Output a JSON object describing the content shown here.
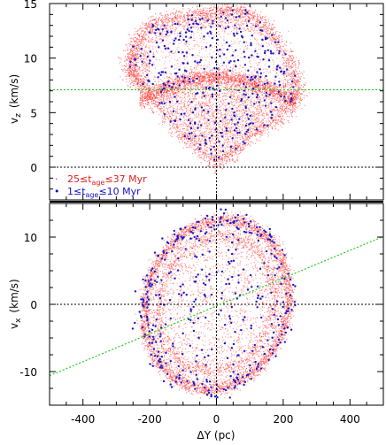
{
  "colors": {
    "red_cloud": "#ff3030",
    "blue_points": "#1a1acc",
    "green_line": "#22cc22",
    "reference_lines": "#000000",
    "legend_red_text": "#e02020",
    "legend_blue_text": "#1010d0"
  },
  "chart_data": [
    {
      "type": "scatter",
      "panel": "top",
      "xlabel": "",
      "ylabel": "v_z (km/s)",
      "ylabel_parts": {
        "main": "v",
        "sub": "z",
        "unit": "(km/s)"
      },
      "xlim": [
        -500,
        500
      ],
      "ylim": [
        -3,
        15
      ],
      "yticks": [
        0,
        5,
        10,
        15
      ],
      "xticks": [
        -400,
        -200,
        0,
        200,
        400
      ],
      "xtick_labels_shown": false,
      "reference_lines": {
        "horizontal_dotted_black_y": 0,
        "vertical_dotted_black_x": 0
      },
      "fit_line": {
        "color": "green",
        "style": "dotted",
        "y": 7.1
      },
      "legend": {
        "placement": "bottom-left",
        "entries": [
          {
            "marker": "·",
            "color": "red",
            "label_parts": {
              "pre": "25≤t",
              "sub": "age",
              "post": "≤37 Myr"
            }
          },
          {
            "marker": "•",
            "color": "blue",
            "label_parts": {
              "pre": "1≤t",
              "sub": "age",
              "post": "≤10 Myr"
            }
          }
        ]
      },
      "series": [
        {
          "name": "25≤t_age≤37 Myr",
          "color": "red",
          "description_points": "dense cloud of ~thousands of points forming a heart-shaped shell"
        },
        {
          "name": "1≤t_age≤10 Myr",
          "color": "blue",
          "description_points": "sparse points within the same shell"
        }
      ],
      "shape": {
        "apex": [
          0,
          0.2
        ],
        "top_left_lobe_peak": [
          -150,
          13.6
        ],
        "top_right_lobe_peak": [
          110,
          14.2
        ],
        "right_edge": [
          250,
          7.2
        ],
        "left_edge": [
          -260,
          8.3
        ],
        "inner_arc_top_y": 8.2
      }
    },
    {
      "type": "scatter",
      "panel": "bottom",
      "xlabel": "ΔY (pc)",
      "ylabel": "v_x (km/s)",
      "ylabel_parts": {
        "main": "v",
        "sub": "x",
        "unit": "(km/s)"
      },
      "xlim": [
        -500,
        500
      ],
      "ylim": [
        -15,
        15
      ],
      "yticks": [
        -10,
        0,
        10
      ],
      "xticks": [
        -400,
        -200,
        0,
        200,
        400
      ],
      "xtick_labels": [
        "-400",
        "-200",
        "0",
        "200",
        "400"
      ],
      "reference_lines": {
        "horizontal_dotted_black_y": 0,
        "vertical_dotted_black_x": 0
      },
      "fit_line": {
        "color": "green",
        "style": "dotted",
        "from": [
          -500,
          -10.6
        ],
        "to": [
          500,
          10.1
        ]
      },
      "series": [
        {
          "name": "25≤t_age≤37 Myr",
          "color": "red",
          "description_points": "dense cloud forming a tilted elliptical ring"
        },
        {
          "name": "1≤t_age≤10 Myr",
          "color": "blue",
          "description_points": "sparse points concentrated on the ring"
        }
      ],
      "shape": {
        "ellipse_center": [
          0,
          0
        ],
        "semi_major_km_s_along_line": 14.0,
        "x_extent": [
          -250,
          270
        ],
        "y_extent": [
          -13.5,
          14.0
        ]
      }
    }
  ]
}
